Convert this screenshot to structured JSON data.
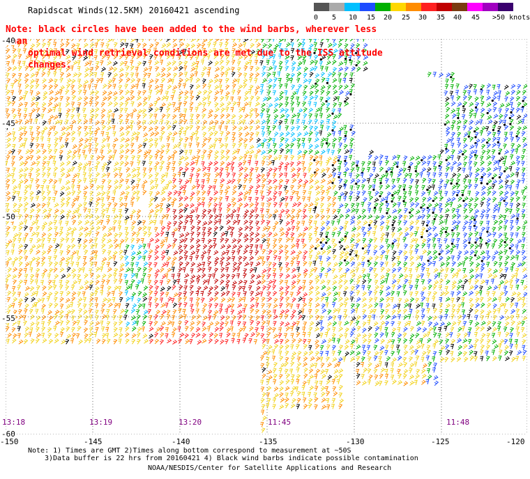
{
  "title": "Rapidscat Winds(12.5KM) 20160421 ascending",
  "note": {
    "line1": "Note: black circles have been added to the wind barbs, wherever less than",
    "line2": "optimal wind retrieval conditions are met due to the ISS attitude changes."
  },
  "legend": {
    "unit_label": ">50 knots",
    "ticks": [
      "0",
      "5",
      "10",
      "15",
      "20",
      "25",
      "30",
      "35",
      "40",
      "45"
    ],
    "colors": [
      "#555555",
      "#aaaaaa",
      "#00bfff",
      "#1e4cff",
      "#00b000",
      "#ffd700",
      "#ff8c00",
      "#ff2020",
      "#c00000",
      "#7a3b10",
      "#ff00ff",
      "#a000c0",
      "#3a006e"
    ]
  },
  "axes": {
    "longitudes": [
      "-150",
      "-145",
      "-140",
      "-135",
      "-130",
      "-125",
      "-120"
    ],
    "latitudes": [
      "-40",
      "-45",
      "-50",
      "-55",
      "-60"
    ]
  },
  "times": [
    "13:18",
    "13:19",
    "13:20",
    "11:45",
    "11:48"
  ],
  "footer": {
    "line1": "Note: 1) Times are GMT 2)Times along bottom correspond to measurement at ~50S",
    "line2": "3)Data buffer is 22 hrs from 20160421 4) Black wind barbs indicate possible contamination",
    "credit": "NOAA/NESDIS/Center for Satellite Applications and Research"
  }
}
